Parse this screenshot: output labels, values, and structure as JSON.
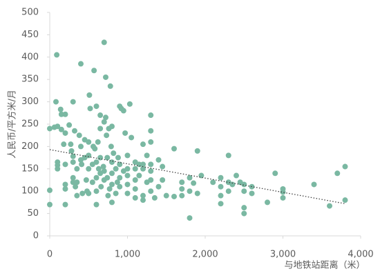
{
  "chart_data": {
    "type": "scatter",
    "x_label": "与地铁站距离（米）",
    "y_label": "人民币/平方米/月",
    "color": "#7ab8a2",
    "xlim": [
      0,
      4000
    ],
    "xticks": [
      0,
      {
        "value": 1000,
        "label": "1,000"
      },
      {
        "value": 2000,
        "label": "2,000"
      },
      {
        "value": 3000,
        "label": "3,000"
      },
      {
        "value": 4000,
        "label": "4,000"
      }
    ],
    "ylim": [
      0,
      500
    ],
    "yticks": [
      0,
      50,
      100,
      150,
      200,
      250,
      300,
      350,
      400,
      450,
      500
    ],
    "x": [
      0,
      0,
      0,
      60,
      90,
      80,
      100,
      100,
      100,
      100,
      140,
      150,
      150,
      200,
      200,
      180,
      200,
      200,
      200,
      200,
      250,
      270,
      280,
      300,
      300,
      300,
      300,
      300,
      320,
      330,
      350,
      350,
      350,
      380,
      400,
      400,
      400,
      410,
      420,
      450,
      450,
      470,
      480,
      500,
      500,
      500,
      500,
      510,
      520,
      550,
      550,
      560,
      570,
      580,
      600,
      600,
      600,
      600,
      600,
      620,
      630,
      650,
      650,
      650,
      650,
      660,
      690,
      700,
      700,
      700,
      700,
      720,
      720,
      730,
      740,
      740,
      750,
      760,
      770,
      780,
      790,
      800,
      800,
      800,
      800,
      800,
      820,
      850,
      850,
      870,
      880,
      900,
      900,
      900,
      900,
      920,
      950,
      950,
      970,
      1000,
      1000,
      1000,
      1000,
      1000,
      1030,
      1050,
      1100,
      1100,
      1100,
      1100,
      1100,
      1150,
      1150,
      1200,
      1200,
      1200,
      1200,
      1200,
      1250,
      1250,
      1300,
      1300,
      1300,
      1300,
      1300,
      1300,
      1300,
      1350,
      1400,
      1400,
      1450,
      1450,
      1500,
      1600,
      1600,
      1700,
      1700,
      1700,
      1800,
      1800,
      1800,
      1850,
      1900,
      1900,
      1950,
      2100,
      2200,
      2200,
      2200,
      2200,
      2300,
      2300,
      2300,
      2350,
      2400,
      2450,
      2500,
      2500,
      2500,
      2500,
      2600,
      2600,
      2800,
      2900,
      3000,
      3000,
      3000,
      3400,
      3600,
      3700,
      3800,
      3800
    ],
    "values": [
      240,
      102,
      70,
      243,
      405,
      300,
      245,
      165,
      158,
      150,
      283,
      272,
      238,
      272,
      230,
      205,
      160,
      115,
      105,
      70,
      248,
      205,
      190,
      300,
      178,
      165,
      130,
      120,
      235,
      110,
      90,
      150,
      120,
      225,
      385,
      200,
      170,
      160,
      95,
      215,
      175,
      125,
      100,
      210,
      180,
      150,
      95,
      315,
      285,
      160,
      120,
      200,
      370,
      195,
      290,
      165,
      130,
      100,
      70,
      210,
      150,
      270,
      240,
      175,
      140,
      110,
      155,
      433,
      255,
      145,
      125,
      355,
      265,
      225,
      175,
      130,
      90,
      240,
      105,
      335,
      200,
      245,
      165,
      140,
      115,
      75,
      185,
      150,
      95,
      120,
      175,
      290,
      160,
      130,
      110,
      285,
      280,
      145,
      230,
      180,
      150,
      135,
      115,
      95,
      295,
      220,
      165,
      150,
      125,
      105,
      85,
      160,
      135,
      90,
      80,
      205,
      160,
      150,
      120,
      180,
      270,
      235,
      210,
      160,
      145,
      125,
      100,
      85,
      110,
      170,
      155,
      125,
      90,
      195,
      88,
      120,
      105,
      90,
      130,
      100,
      40,
      118,
      190,
      95,
      135,
      120,
      130,
      110,
      90,
      72,
      180,
      120,
      100,
      115,
      135,
      120,
      115,
      100,
      63,
      50,
      110,
      95,
      75,
      140,
      105,
      98,
      85,
      115,
      67,
      140,
      155,
      80
    ],
    "trendline": {
      "x": [
        0,
        3800
      ],
      "values": [
        193,
        72
      ]
    }
  }
}
